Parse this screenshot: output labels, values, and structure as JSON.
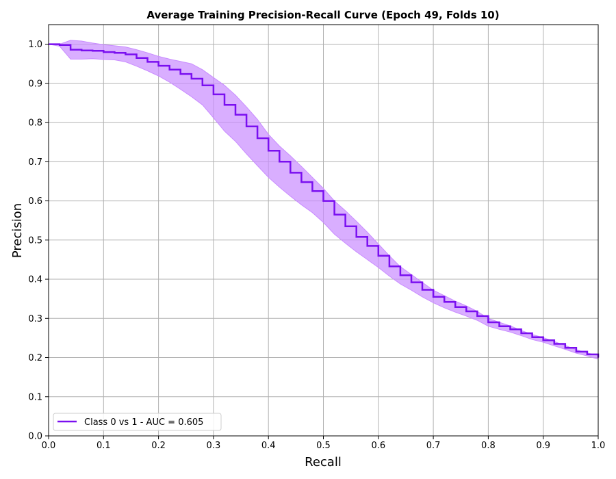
{
  "chart_data": {
    "type": "line",
    "title": "Average Training Precision-Recall Curve (Epoch 49, Folds 10)",
    "xlabel": "Recall",
    "ylabel": "Precision",
    "xlim": [
      0.0,
      1.0
    ],
    "ylim": [
      0.0,
      1.05
    ],
    "xticks": [
      "0.0",
      "0.1",
      "0.2",
      "0.3",
      "0.4",
      "0.5",
      "0.6",
      "0.7",
      "0.8",
      "0.9",
      "1.0"
    ],
    "yticks": [
      "0.0",
      "0.1",
      "0.2",
      "0.3",
      "0.4",
      "0.5",
      "0.6",
      "0.7",
      "0.8",
      "0.9",
      "1.0"
    ],
    "grid": true,
    "legend_position": "lower-left",
    "series": [
      {
        "name": "Class 0 vs 1  -  AUC = 0.605",
        "color": "#7a0ff0",
        "band_color": "#c98cff",
        "x": [
          0.0,
          0.02,
          0.04,
          0.06,
          0.08,
          0.1,
          0.12,
          0.14,
          0.16,
          0.18,
          0.2,
          0.22,
          0.24,
          0.26,
          0.28,
          0.3,
          0.32,
          0.34,
          0.36,
          0.38,
          0.4,
          0.42,
          0.44,
          0.46,
          0.48,
          0.5,
          0.52,
          0.54,
          0.56,
          0.58,
          0.6,
          0.62,
          0.64,
          0.66,
          0.68,
          0.7,
          0.72,
          0.74,
          0.76,
          0.78,
          0.8,
          0.82,
          0.84,
          0.86,
          0.88,
          0.9,
          0.92,
          0.94,
          0.96,
          0.98,
          1.0
        ],
        "y": [
          1.0,
          0.998,
          0.986,
          0.984,
          0.983,
          0.98,
          0.978,
          0.974,
          0.965,
          0.955,
          0.945,
          0.935,
          0.924,
          0.912,
          0.895,
          0.872,
          0.845,
          0.82,
          0.79,
          0.76,
          0.728,
          0.7,
          0.672,
          0.648,
          0.625,
          0.6,
          0.565,
          0.535,
          0.508,
          0.485,
          0.46,
          0.433,
          0.41,
          0.392,
          0.373,
          0.355,
          0.342,
          0.329,
          0.318,
          0.306,
          0.29,
          0.28,
          0.272,
          0.262,
          0.252,
          0.244,
          0.235,
          0.225,
          0.215,
          0.208,
          0.2
        ],
        "lower": [
          1.0,
          0.995,
          0.962,
          0.962,
          0.963,
          0.961,
          0.96,
          0.955,
          0.944,
          0.932,
          0.919,
          0.903,
          0.885,
          0.866,
          0.845,
          0.812,
          0.778,
          0.752,
          0.72,
          0.69,
          0.66,
          0.635,
          0.612,
          0.59,
          0.57,
          0.545,
          0.515,
          0.492,
          0.47,
          0.45,
          0.43,
          0.408,
          0.388,
          0.372,
          0.355,
          0.34,
          0.327,
          0.316,
          0.306,
          0.295,
          0.28,
          0.272,
          0.265,
          0.256,
          0.246,
          0.239,
          0.23,
          0.221,
          0.211,
          0.204,
          0.196
        ],
        "upper": [
          1.0,
          1.0,
          1.01,
          1.008,
          1.003,
          0.999,
          0.996,
          0.993,
          0.986,
          0.978,
          0.969,
          0.962,
          0.956,
          0.95,
          0.935,
          0.915,
          0.895,
          0.87,
          0.84,
          0.808,
          0.77,
          0.74,
          0.715,
          0.688,
          0.66,
          0.632,
          0.6,
          0.575,
          0.548,
          0.52,
          0.49,
          0.46,
          0.432,
          0.412,
          0.392,
          0.372,
          0.358,
          0.344,
          0.332,
          0.318,
          0.3,
          0.29,
          0.281,
          0.269,
          0.259,
          0.251,
          0.241,
          0.231,
          0.22,
          0.212,
          0.205
        ]
      }
    ]
  }
}
